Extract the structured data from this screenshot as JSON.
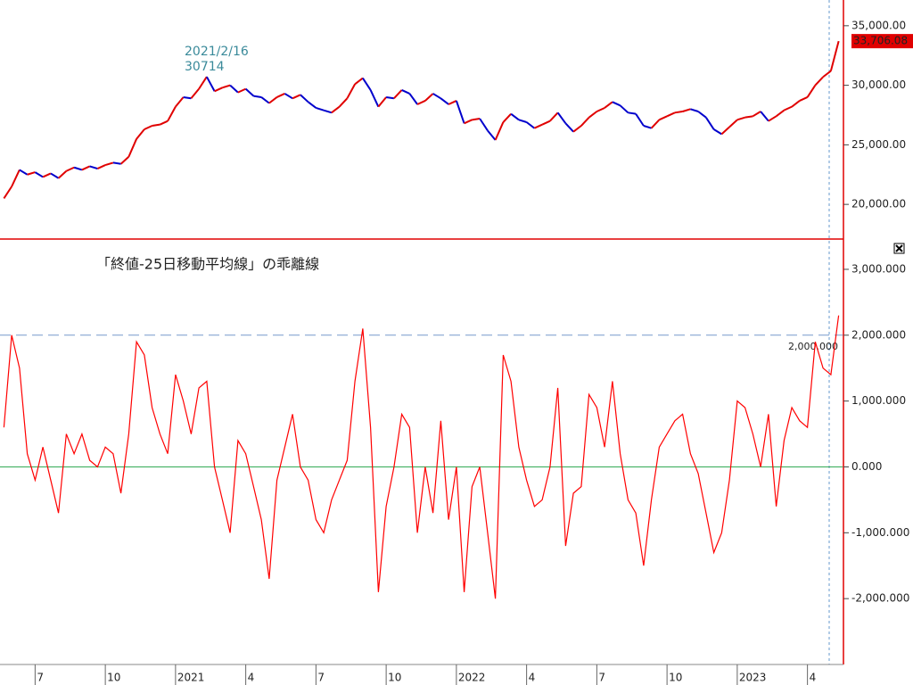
{
  "chart_data": [
    {
      "type": "line",
      "up_color": "#e00000",
      "down_color": "#0000cc",
      "values": [
        20500,
        21500,
        22900,
        22500,
        22700,
        22300,
        22600,
        22200,
        22800,
        23100,
        22900,
        23200,
        23000,
        23300,
        23500,
        23400,
        24000,
        25500,
        26300,
        26600,
        26700,
        27000,
        28200,
        29000,
        28900,
        29700,
        30714,
        29500,
        29800,
        30000,
        29400,
        29700,
        29100,
        29000,
        28500,
        29000,
        29300,
        28900,
        29200,
        28600,
        28100,
        27900,
        27700,
        28200,
        28900,
        30100,
        30600,
        29600,
        28200,
        29000,
        28900,
        29600,
        29300,
        28400,
        28700,
        29300,
        28900,
        28400,
        28700,
        26800,
        27100,
        27200,
        26200,
        25400,
        26900,
        27600,
        27100,
        26900,
        26400,
        26700,
        27000,
        27700,
        26800,
        26100,
        26600,
        27300,
        27800,
        28100,
        28600,
        28300,
        27700,
        27600,
        26600,
        26400,
        27100,
        27400,
        27700,
        27800,
        28000,
        27800,
        27300,
        26300,
        25900,
        26500,
        27100,
        27300,
        27400,
        27800,
        27000,
        27400,
        27900,
        28200,
        28700,
        29000,
        30000,
        30700,
        31200,
        33706.08
      ],
      "value_labels": [
        null,
        null,
        null,
        null,
        null,
        null,
        null,
        null,
        null,
        null,
        null,
        null,
        null,
        null,
        null,
        null,
        null,
        null,
        null,
        null,
        null,
        null,
        null,
        null,
        null,
        null,
        null,
        null,
        null,
        null,
        null,
        null,
        null,
        null,
        null,
        null,
        null,
        null,
        null,
        null,
        null,
        null,
        null,
        null,
        null,
        null,
        null,
        null,
        null,
        null,
        null,
        null,
        null,
        null,
        null,
        null,
        null,
        null,
        null,
        null,
        null,
        null,
        null,
        null,
        null,
        null,
        null,
        null,
        null,
        null,
        null,
        null,
        null,
        null,
        null,
        null,
        null,
        null,
        null,
        null,
        null,
        null,
        null,
        null,
        null,
        null,
        null,
        null,
        null,
        null,
        null,
        null,
        null,
        null,
        null,
        null,
        null,
        null,
        null,
        null,
        null,
        null,
        null,
        null,
        null,
        null,
        null,
        "33,706.08"
      ],
      "annotation": {
        "date": "2021/2/16",
        "value": 30714
      },
      "ylim": [
        17090,
        37160
      ],
      "yticks": [
        {
          "value": 20000,
          "label": "20,000.00"
        },
        {
          "value": 25000,
          "label": "25,000.00"
        },
        {
          "value": 30000,
          "label": "30,000.00"
        },
        {
          "value": 35000,
          "label": "35,000.00"
        }
      ]
    },
    {
      "type": "line",
      "title": "「終値-25日移動平均線」の乖離線",
      "color": "#ff0000",
      "zero_color": "#33aa55",
      "categories": [
        null,
        null,
        null,
        null,
        "7",
        null,
        null,
        null,
        null,
        null,
        null,
        null,
        null,
        "10",
        null,
        null,
        null,
        null,
        null,
        null,
        null,
        null,
        "2021",
        null,
        null,
        null,
        null,
        null,
        null,
        null,
        null,
        "4",
        null,
        null,
        null,
        null,
        null,
        null,
        null,
        null,
        "7",
        null,
        null,
        null,
        null,
        null,
        null,
        null,
        null,
        "10",
        null,
        null,
        null,
        null,
        null,
        null,
        null,
        null,
        "2022",
        null,
        null,
        null,
        null,
        null,
        null,
        null,
        null,
        "4",
        null,
        null,
        null,
        null,
        null,
        null,
        null,
        null,
        "7",
        null,
        null,
        null,
        null,
        null,
        null,
        null,
        null,
        "10",
        null,
        null,
        null,
        null,
        null,
        null,
        null,
        null,
        "2023",
        null,
        null,
        null,
        null,
        null,
        null,
        null,
        null,
        "4",
        null,
        null,
        null,
        null
      ],
      "values": [
        600,
        2000,
        1500,
        200,
        -200,
        300,
        -200,
        -700,
        500,
        200,
        500,
        100,
        0,
        300,
        200,
        -400,
        500,
        1900,
        1700,
        900,
        500,
        200,
        1400,
        1000,
        500,
        1200,
        1300,
        0,
        -500,
        -1000,
        400,
        200,
        -300,
        -800,
        -1700,
        -200,
        300,
        800,
        0,
        -200,
        -800,
        -1000,
        -500,
        -200,
        100,
        1300,
        2100,
        600,
        -1900,
        -600,
        0,
        800,
        600,
        -1000,
        0,
        -700,
        700,
        -800,
        0,
        -1900,
        -300,
        0,
        -1000,
        -2000,
        1700,
        1300,
        300,
        -200,
        -600,
        -500,
        0,
        1200,
        -1200,
        -400,
        -300,
        1100,
        900,
        300,
        1300,
        200,
        -500,
        -700,
        -1500,
        -500,
        300,
        500,
        700,
        800,
        200,
        -100,
        -700,
        -1300,
        -1000,
        -200,
        1000,
        900,
        500,
        0,
        800,
        -600,
        400,
        900,
        700,
        600,
        1900,
        1500,
        1400,
        2300
      ],
      "reference_line": {
        "value": 2000,
        "label": "2,000.000",
        "color": "#7799cc"
      },
      "ylim": [
        -3000,
        3460
      ],
      "yticks": [
        {
          "value": -2000,
          "label": "-2,000.000"
        },
        {
          "value": -1000,
          "label": "-1,000.000"
        },
        {
          "value": 0,
          "label": "0.000"
        },
        {
          "value": 1000,
          "label": "1,000.000"
        },
        {
          "value": 2000,
          "label": "2,000.000"
        },
        {
          "value": 3000,
          "label": "3,000.000"
        }
      ]
    }
  ]
}
